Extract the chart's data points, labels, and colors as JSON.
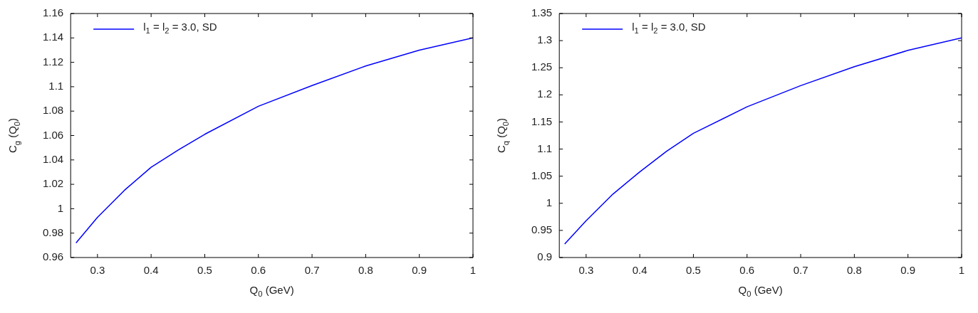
{
  "chart_data": [
    {
      "type": "line",
      "xlabel": "Q$_{0}$ (GeV)",
      "ylabel": "C$_{g}$ (Q$_{0}$)",
      "legend": "top left",
      "x": [
        0.26,
        0.3,
        0.35,
        0.4,
        0.45,
        0.5,
        0.6,
        0.7,
        0.8,
        0.9,
        1.0
      ],
      "series": [
        {
          "name": "l$_{1}$ = l$_{2}$ = 3.0, SD",
          "color": "#0000ff",
          "values": [
            0.972,
            0.993,
            1.015,
            1.034,
            1.048,
            1.061,
            1.084,
            1.101,
            1.117,
            1.13,
            1.14
          ]
        }
      ],
      "xlim": [
        0.25,
        1
      ],
      "xticks": [
        0.3,
        0.4,
        0.5,
        0.6,
        0.7,
        0.8,
        0.9,
        1
      ],
      "ylim": [
        0.96,
        1.16
      ],
      "yticks": [
        0.96,
        0.98,
        1,
        1.02,
        1.04,
        1.06,
        1.08,
        1.1,
        1.12,
        1.14,
        1.16
      ]
    },
    {
      "type": "line",
      "xlabel": "Q$_{0}$ (GeV)",
      "ylabel": "C$_{q}$ (Q$_{0}$)",
      "legend": "top left",
      "x": [
        0.26,
        0.3,
        0.35,
        0.4,
        0.45,
        0.5,
        0.6,
        0.7,
        0.8,
        0.9,
        1.0
      ],
      "series": [
        {
          "name": "l$_{1}$ = l$_{2}$ = 3.0, SD",
          "color": "#0000ff",
          "values": [
            0.925,
            0.968,
            1.017,
            1.058,
            1.096,
            1.129,
            1.178,
            1.217,
            1.252,
            1.282,
            1.305
          ]
        }
      ],
      "xlim": [
        0.25,
        1
      ],
      "xticks": [
        0.3,
        0.4,
        0.5,
        0.6,
        0.7,
        0.8,
        0.9,
        1
      ],
      "ylim": [
        0.9,
        1.35
      ],
      "yticks": [
        0.9,
        0.95,
        1,
        1.05,
        1.1,
        1.15,
        1.2,
        1.25,
        1.3,
        1.35
      ]
    }
  ]
}
